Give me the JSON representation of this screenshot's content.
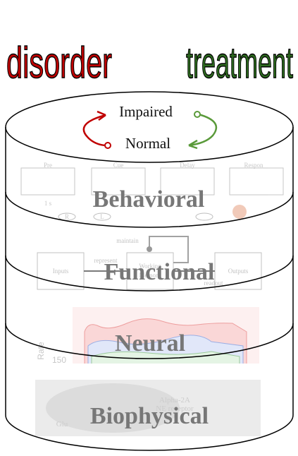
{
  "header": {
    "left": "disorder",
    "right": "treatment"
  },
  "states": {
    "top": "Impaired",
    "bottom": "Normal"
  },
  "layers": [
    {
      "label": "Behavioral",
      "details": [
        "Pre",
        "Cue",
        "Delay",
        "Respon",
        "1 s",
        "L",
        "R"
      ]
    },
    {
      "label": "Functional",
      "details": [
        "maintain",
        "represent",
        "Inputs",
        "Working",
        "Memory",
        "Outputs",
        "readout"
      ]
    },
    {
      "label": "Neural",
      "details": [
        "Rate",
        "150"
      ]
    },
    {
      "label": "Biophysical",
      "details": [
        "Alpha-2A",
        "NE receptor",
        "Glu"
      ]
    }
  ]
}
